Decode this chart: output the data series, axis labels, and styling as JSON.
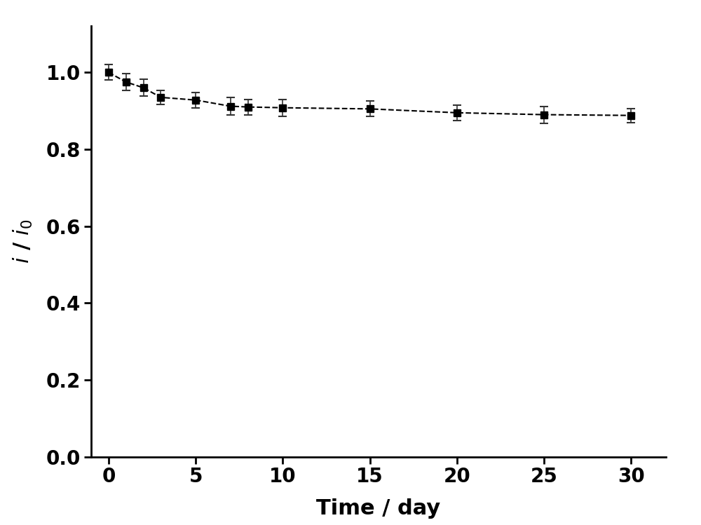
{
  "x": [
    0,
    1,
    2,
    3,
    5,
    7,
    8,
    10,
    15,
    20,
    25,
    30
  ],
  "y": [
    1.0,
    0.975,
    0.96,
    0.935,
    0.928,
    0.912,
    0.91,
    0.908,
    0.905,
    0.895,
    0.89,
    0.888
  ],
  "yerr": [
    0.02,
    0.022,
    0.022,
    0.018,
    0.02,
    0.022,
    0.02,
    0.022,
    0.02,
    0.02,
    0.022,
    0.018
  ],
  "xlabel": "Time / day",
  "xlim": [
    -1,
    32
  ],
  "ylim": [
    0.0,
    1.12
  ],
  "xticks": [
    0,
    5,
    10,
    15,
    20,
    25,
    30
  ],
  "yticks": [
    0.0,
    0.2,
    0.4,
    0.6,
    0.8,
    1.0
  ],
  "line_color": "#000000",
  "marker_color": "#000000",
  "background_color": "#ffffff",
  "line_style": "--",
  "marker": "s",
  "marker_size": 7,
  "line_width": 1.5,
  "xlabel_fontsize": 22,
  "ylabel_fontsize": 22,
  "tick_fontsize": 20,
  "ecolor": "#333333",
  "capsize": 4,
  "spine_linewidth": 2.0
}
